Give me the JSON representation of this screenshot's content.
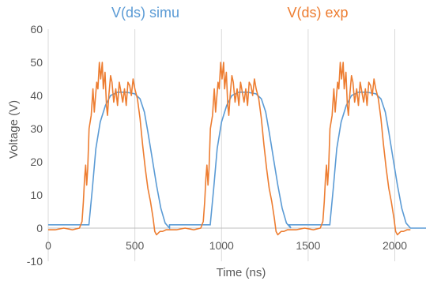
{
  "chart_data": {
    "type": "line",
    "title": "",
    "xlabel": "Time (ns)",
    "ylabel": "Voltage (V)",
    "xlim": [
      0,
      2180
    ],
    "ylim": [
      -10,
      60
    ],
    "x_ticks": [
      0,
      500,
      1000,
      1500,
      2000
    ],
    "y_ticks": [
      -10,
      0,
      10,
      20,
      30,
      40,
      50,
      60
    ],
    "x_tick_labels": [
      "0",
      "500",
      "1000",
      "1500",
      "2000"
    ],
    "y_tick_labels": [
      "-10",
      "0",
      "10",
      "20",
      "30",
      "40",
      "50",
      "60"
    ],
    "grid": "vertical",
    "legend_placement": "top",
    "series": [
      {
        "name": "V(ds) simu",
        "color": "#5B9BD5",
        "x": [
          0,
          235,
          255,
          275,
          300,
          330,
          360,
          400,
          450,
          500,
          530,
          555,
          575,
          600,
          625,
          650,
          675,
          700,
          2180
        ],
        "y": [
          1,
          1,
          12,
          24,
          32,
          37,
          40,
          41,
          41,
          40.5,
          39,
          35,
          29,
          21,
          13,
          6,
          1.5,
          0,
          0
        ],
        "periods": [
          0,
          700,
          1390
        ]
      },
      {
        "name": "V(ds) exp",
        "color": "#ED7D31",
        "x": [
          0,
          40,
          90,
          140,
          180,
          195,
          203,
          210,
          216,
          222,
          228,
          236,
          248,
          258,
          266,
          272,
          280,
          287,
          295,
          303,
          312,
          318,
          328,
          336,
          342,
          350,
          360,
          368,
          378,
          390,
          400,
          410,
          420,
          430,
          440,
          450,
          460,
          470,
          480,
          490,
          500,
          515,
          530,
          545,
          560,
          575,
          590,
          605,
          615,
          625,
          635,
          645,
          660,
          680,
          700
        ],
        "y": [
          -0.5,
          -0.5,
          0,
          -0.5,
          0,
          2,
          8,
          15,
          19,
          13,
          18,
          30,
          34,
          42,
          35,
          39,
          44,
          42,
          50,
          45,
          50,
          42,
          47,
          37,
          34,
          40,
          46,
          44,
          38,
          42,
          37,
          44,
          41,
          38,
          42,
          37,
          44,
          43,
          40,
          45,
          42,
          39,
          33,
          25,
          18,
          12,
          8,
          3,
          -1,
          -2,
          -1.5,
          -1,
          -1,
          -0.5,
          -0.5
        ],
        "periods": [
          0,
          700,
          1390
        ]
      }
    ]
  }
}
